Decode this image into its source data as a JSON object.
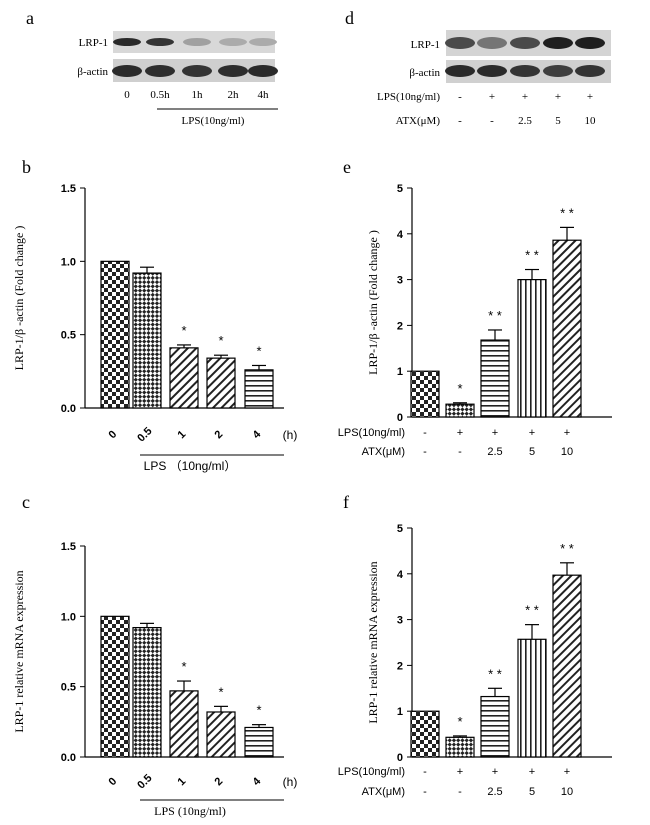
{
  "figure": {
    "panel_labels": {
      "a": "a",
      "b": "b",
      "c": "c",
      "d": "d",
      "e": "e",
      "f": "f"
    }
  },
  "blot_a": {
    "rows": [
      "LRP-1",
      "β-actin"
    ],
    "lanes": [
      "0",
      "0.5h",
      "1h",
      "2h",
      "4h"
    ],
    "treatment": "LPS(10ng/ml)",
    "band_intensity": {
      "LRP-1": [
        0.9,
        0.85,
        0.35,
        0.3,
        0.3
      ],
      "β-actin": [
        0.9,
        0.88,
        0.85,
        0.88,
        0.9
      ]
    }
  },
  "blot_d": {
    "rows": [
      "LRP-1",
      "β-actin"
    ],
    "cond_labels": [
      "LPS(10ng/ml)",
      "ATX(μM)"
    ],
    "lps": [
      "-",
      "+",
      "+",
      "+",
      "+"
    ],
    "atx": [
      "-",
      "-",
      "2.5",
      "5",
      "10"
    ],
    "band_intensity": {
      "LRP-1": [
        0.75,
        0.55,
        0.75,
        0.95,
        0.95
      ],
      "β-actin": [
        0.9,
        0.9,
        0.85,
        0.8,
        0.85
      ]
    }
  },
  "chart_data": [
    {
      "id": "b",
      "type": "bar",
      "ylabel": "LRP-1/β -actin (Fold change )",
      "categories": [
        "0",
        "0.5",
        "1",
        "2",
        "4"
      ],
      "unit_label": "(h)",
      "xlabel": "LPS （10ng/ml）",
      "values": [
        1.0,
        0.92,
        0.41,
        0.34,
        0.26
      ],
      "errors": [
        0,
        0.04,
        0.02,
        0.02,
        0.03
      ],
      "significance": [
        "",
        "",
        "*",
        "*",
        "*"
      ],
      "ylim": [
        0,
        1.5
      ],
      "yticks": [
        "0.0",
        "0.5",
        "1.0",
        "1.5"
      ],
      "patterns": [
        "check",
        "check-small",
        "diag",
        "diag",
        "horiz"
      ]
    },
    {
      "id": "c",
      "type": "bar",
      "ylabel": "LRP-1 relative  mRNA expression",
      "categories": [
        "0",
        "0.5",
        "1",
        "2",
        "4"
      ],
      "unit_label": "(h)",
      "xlabel": "LPS (10ng/ml)",
      "values": [
        1.0,
        0.92,
        0.47,
        0.32,
        0.21
      ],
      "errors": [
        0,
        0.03,
        0.07,
        0.04,
        0.02
      ],
      "significance": [
        "",
        "",
        "*",
        "*",
        "*"
      ],
      "ylim": [
        0,
        1.5
      ],
      "yticks": [
        "0.0",
        "0.5",
        "1.0",
        "1.5"
      ],
      "patterns": [
        "check",
        "check-small",
        "diag",
        "diag",
        "horiz"
      ]
    },
    {
      "id": "e",
      "type": "bar",
      "ylabel": "LRP-1/β -actin (Fold change )",
      "cond_labels": [
        "LPS(10ng/ml)",
        "ATX(μM)"
      ],
      "lps": [
        "-",
        "+",
        "+",
        "+",
        "+"
      ],
      "atx": [
        "-",
        "-",
        "2.5",
        "5",
        "10"
      ],
      "values": [
        1.0,
        0.28,
        1.68,
        3.0,
        3.86
      ],
      "errors": [
        0,
        0.03,
        0.22,
        0.22,
        0.28
      ],
      "significance": [
        "",
        "*",
        "* *",
        "* *",
        "* *"
      ],
      "ylim": [
        0,
        5
      ],
      "yticks": [
        "0",
        "1",
        "2",
        "3",
        "4",
        "5"
      ],
      "patterns": [
        "check",
        "check-small",
        "horiz",
        "vert",
        "diag"
      ]
    },
    {
      "id": "f",
      "type": "bar",
      "ylabel": "LRP-1 relative  mRNA expression",
      "cond_labels": [
        "LPS(10ng/ml)",
        "ATX(μM)"
      ],
      "lps": [
        "-",
        "+",
        "+",
        "+",
        "+"
      ],
      "atx": [
        "-",
        "-",
        "2.5",
        "5",
        "10"
      ],
      "values": [
        1.0,
        0.43,
        1.32,
        2.57,
        3.97
      ],
      "errors": [
        0,
        0.03,
        0.18,
        0.32,
        0.27
      ],
      "significance": [
        "",
        "*",
        "* *",
        "* *",
        "* *"
      ],
      "ylim": [
        0,
        5
      ],
      "yticks": [
        "0",
        "1",
        "2",
        "3",
        "4",
        "5"
      ],
      "patterns": [
        "check",
        "check-small",
        "horiz",
        "vert",
        "diag"
      ]
    }
  ]
}
